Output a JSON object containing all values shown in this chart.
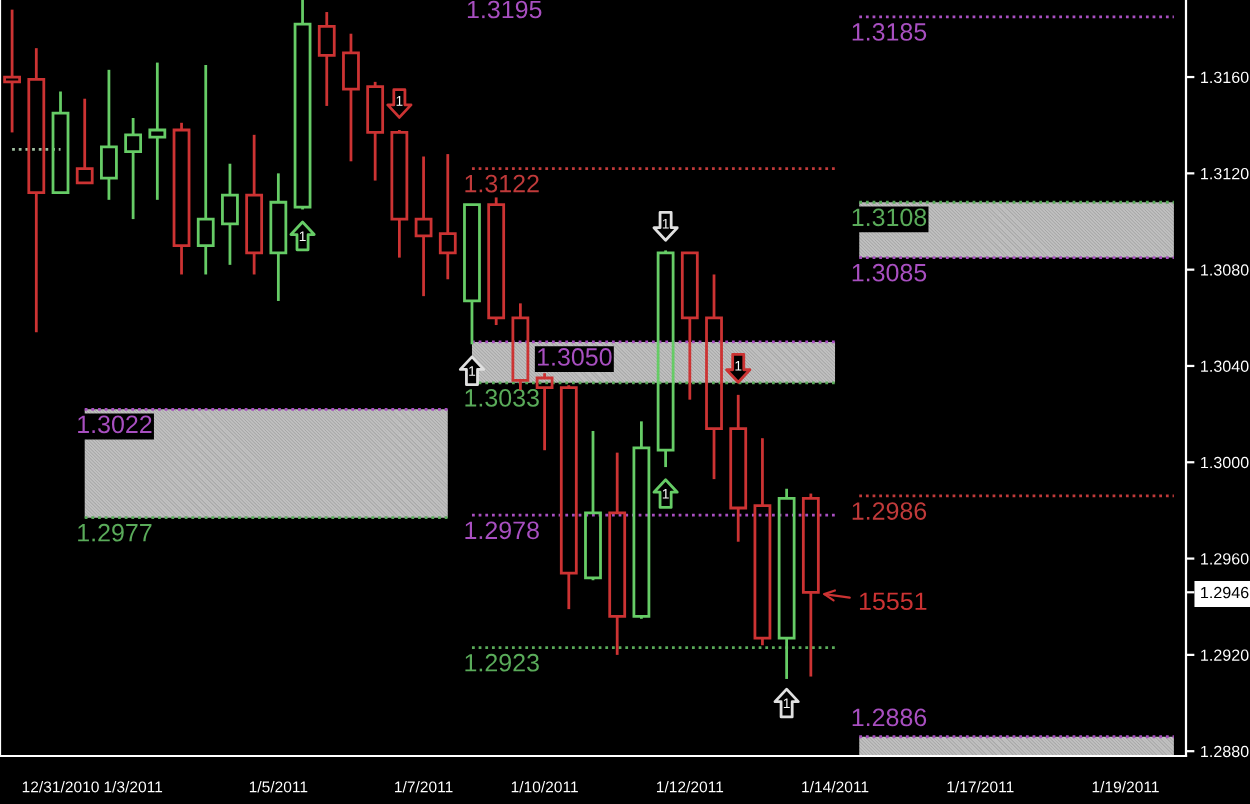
{
  "chart_data": {
    "type": "candlestick",
    "categories": [
      null,
      null,
      "12/31/2010",
      null,
      null,
      "1/3/2011",
      null,
      null,
      null,
      null,
      null,
      "1/5/2011",
      null,
      null,
      null,
      null,
      null,
      "1/7/2011",
      null,
      null,
      null,
      null,
      "1/10/2011",
      null,
      null,
      null,
      null,
      null,
      "1/12/2011",
      null,
      null,
      null,
      null,
      null,
      "1/14/2011",
      null,
      null,
      null,
      null,
      null,
      "1/17/2011",
      null,
      null,
      null,
      null,
      null,
      "1/19/2011",
      null,
      null
    ],
    "ohlc": [
      [
        1.316,
        1.3188,
        1.3137,
        1.3158
      ],
      [
        1.3159,
        1.3172,
        1.3054,
        1.3112
      ],
      [
        1.3112,
        1.3154,
        1.3112,
        1.3145
      ],
      [
        1.3122,
        1.3151,
        1.3116,
        1.3116
      ],
      [
        1.3118,
        1.3163,
        1.3109,
        1.3131
      ],
      [
        1.3129,
        1.3143,
        1.3101,
        1.3136
      ],
      [
        1.3135,
        1.3166,
        1.3109,
        1.3138
      ],
      [
        1.3138,
        1.3141,
        1.3078,
        1.309
      ],
      [
        1.309,
        1.3165,
        1.3078,
        1.3101
      ],
      [
        1.3099,
        1.3124,
        1.3082,
        1.3111
      ],
      [
        1.3111,
        1.3136,
        1.3078,
        1.3087
      ],
      [
        1.3087,
        1.312,
        1.3067,
        1.3108
      ],
      [
        1.3106,
        1.3192,
        1.3105,
        1.3182
      ],
      [
        1.3181,
        1.3187,
        1.3148,
        1.3169
      ],
      [
        1.317,
        1.3178,
        1.3125,
        1.3155
      ],
      [
        1.3156,
        1.3158,
        1.3117,
        1.3137
      ],
      [
        1.3137,
        1.3138,
        1.3085,
        1.3101
      ],
      [
        1.3101,
        1.3127,
        1.3069,
        1.3094
      ],
      [
        1.3095,
        1.3128,
        1.3076,
        1.3087
      ],
      [
        1.3067,
        1.3107,
        1.3049,
        1.3107
      ],
      [
        1.3107,
        1.311,
        1.3057,
        1.306
      ],
      [
        1.306,
        1.3066,
        1.303,
        1.3034
      ],
      [
        1.3035,
        1.3037,
        1.3005,
        1.3031
      ],
      [
        1.3031,
        1.3032,
        1.2939,
        1.2954
      ],
      [
        1.2952,
        1.3013,
        1.2951,
        1.2979
      ],
      [
        1.2979,
        1.3004,
        1.292,
        1.2936
      ],
      [
        1.2936,
        1.3017,
        1.2935,
        1.3006
      ],
      [
        1.3005,
        1.3088,
        1.2998,
        1.3087
      ],
      [
        1.3087,
        1.3087,
        1.3026,
        1.306
      ],
      [
        1.306,
        1.3078,
        1.2993,
        1.3014
      ],
      [
        1.3014,
        1.3028,
        1.2967,
        1.2981
      ],
      [
        1.2982,
        1.301,
        1.2924,
        1.2927
      ],
      [
        1.2927,
        1.2989,
        1.291,
        1.2985
      ],
      [
        1.2985,
        1.2987,
        1.2911,
        1.2946
      ],
      null,
      null,
      null,
      null,
      null,
      null,
      null,
      null,
      null,
      null,
      null,
      null,
      null,
      null,
      null
    ],
    "colors": [
      "#cc3333",
      "#cc3333",
      "#66cc66",
      "#cc3333",
      "#66cc66",
      "#66cc66",
      "#66cc66",
      "#cc3333",
      "#66cc66",
      "#66cc66",
      "#cc3333",
      "#66cc66",
      "#66cc66",
      "#cc3333",
      "#cc3333",
      "#cc3333",
      "#cc3333",
      "#cc3333",
      "#cc3333",
      "#66cc66",
      "#cc3333",
      "#cc3333",
      "#cc3333",
      "#cc3333",
      "#66cc66",
      "#cc3333",
      "#66cc66",
      "#66cc66",
      "#cc3333",
      "#cc3333",
      "#cc3333",
      "#cc3333",
      "#66cc66",
      "#cc3333",
      null,
      null,
      null,
      null,
      null,
      null,
      null,
      null,
      null,
      null,
      null,
      null,
      null,
      null,
      null
    ],
    "series": [
      {
        "type": "line",
        "name": "1.3185",
        "color": "#a84fc0",
        "values": [
          null,
          null,
          null,
          null,
          null,
          null,
          null,
          null,
          null,
          null,
          null,
          null,
          null,
          null,
          null,
          null,
          null,
          null,
          null,
          null,
          null,
          null,
          null,
          null,
          null,
          null,
          null,
          null,
          null,
          null,
          null,
          null,
          null,
          null,
          null,
          1.3185,
          1.3185,
          1.3185,
          1.3185,
          1.3185,
          1.3185,
          1.3185,
          1.3185,
          1.3185,
          1.3185,
          1.3185,
          1.3185,
          1.3185,
          1.3185
        ]
      },
      {
        "type": "line",
        "name": "1.3122",
        "color": "#c03a3a",
        "values": [
          null,
          null,
          null,
          null,
          null,
          null,
          null,
          null,
          null,
          null,
          null,
          null,
          null,
          null,
          null,
          null,
          null,
          null,
          null,
          1.3122,
          1.3122,
          1.3122,
          1.3122,
          1.3122,
          1.3122,
          1.3122,
          1.3122,
          1.3122,
          1.3122,
          1.3122,
          1.3122,
          1.3122,
          1.3122,
          1.3122,
          1.3122,
          null,
          null,
          null,
          null,
          null,
          null,
          null,
          null,
          null,
          null,
          null,
          null,
          null,
          null
        ]
      },
      {
        "type": "line",
        "name": "1.3108",
        "color": "#5aab5a",
        "values": [
          null,
          null,
          null,
          null,
          null,
          null,
          null,
          null,
          null,
          null,
          null,
          null,
          null,
          null,
          null,
          null,
          null,
          null,
          null,
          null,
          null,
          null,
          null,
          null,
          null,
          null,
          null,
          null,
          null,
          null,
          null,
          null,
          null,
          null,
          null,
          1.3108,
          1.3108,
          1.3108,
          1.3108,
          1.3108,
          1.3108,
          1.3108,
          1.3108,
          1.3108,
          1.3108,
          1.3108,
          1.3108,
          1.3108,
          1.3108
        ],
        "lower": [
          null,
          null,
          null,
          null,
          null,
          null,
          null,
          null,
          null,
          null,
          null,
          null,
          null,
          null,
          null,
          null,
          null,
          null,
          null,
          null,
          null,
          null,
          null,
          null,
          null,
          null,
          null,
          null,
          null,
          null,
          null,
          null,
          null,
          null,
          null,
          1.3085,
          1.3085,
          1.3085,
          1.3085,
          1.3085,
          1.3085,
          1.3085,
          1.3085,
          1.3085,
          1.3085,
          1.3085,
          1.3085,
          1.3085,
          1.3085
        ],
        "upper": [
          null,
          null,
          null,
          null,
          null,
          null,
          null,
          null,
          null,
          null,
          null,
          null,
          null,
          null,
          null,
          null,
          null,
          null,
          null,
          null,
          null,
          null,
          null,
          null,
          null,
          null,
          null,
          null,
          null,
          null,
          null,
          null,
          null,
          null,
          null,
          1.3108,
          1.3108,
          1.3108,
          1.3108,
          1.3108,
          1.3108,
          1.3108,
          1.3108,
          1.3108,
          1.3108,
          1.3108,
          1.3108,
          1.3108,
          1.3108
        ]
      },
      {
        "type": "line",
        "name": "1.3085",
        "color": "#a84fc0",
        "values": [
          null,
          null,
          null,
          null,
          null,
          null,
          null,
          null,
          null,
          null,
          null,
          null,
          null,
          null,
          null,
          null,
          null,
          null,
          null,
          null,
          null,
          null,
          null,
          null,
          null,
          null,
          null,
          null,
          null,
          null,
          null,
          null,
          null,
          null,
          null,
          1.3085,
          1.3085,
          1.3085,
          1.3085,
          1.3085,
          1.3085,
          1.3085,
          1.3085,
          1.3085,
          1.3085,
          1.3085,
          1.3085,
          1.3085,
          1.3085
        ]
      },
      {
        "type": "line",
        "name": "1.3050",
        "color": "#a84fc0",
        "values": [
          null,
          null,
          null,
          null,
          null,
          null,
          null,
          null,
          null,
          null,
          null,
          null,
          null,
          null,
          null,
          null,
          null,
          null,
          null,
          1.305,
          1.305,
          1.305,
          1.305,
          1.305,
          1.305,
          1.305,
          1.305,
          1.305,
          1.305,
          1.305,
          1.305,
          1.305,
          1.305,
          1.305,
          1.305,
          null,
          null,
          null,
          null,
          null,
          null,
          null,
          null,
          null,
          null,
          null,
          null,
          null,
          null
        ],
        "lower": [
          null,
          null,
          null,
          null,
          null,
          null,
          null,
          null,
          null,
          null,
          null,
          null,
          null,
          null,
          null,
          null,
          null,
          null,
          null,
          1.3033,
          1.3033,
          1.3033,
          1.3033,
          1.3033,
          1.3033,
          1.3033,
          1.3033,
          1.3033,
          1.3033,
          1.3033,
          1.3033,
          1.3033,
          1.3033,
          1.3033,
          1.3033,
          null,
          null,
          null,
          null,
          null,
          null,
          null,
          null,
          null,
          null,
          null,
          null,
          null,
          null
        ],
        "upper": [
          null,
          null,
          null,
          null,
          null,
          null,
          null,
          null,
          null,
          null,
          null,
          null,
          null,
          null,
          null,
          null,
          null,
          null,
          null,
          1.305,
          1.305,
          1.305,
          1.305,
          1.305,
          1.305,
          1.305,
          1.305,
          1.305,
          1.305,
          1.305,
          1.305,
          1.305,
          1.305,
          1.305,
          1.305,
          null,
          null,
          null,
          null,
          null,
          null,
          null,
          null,
          null,
          null,
          null,
          null,
          null,
          null
        ]
      },
      {
        "type": "line",
        "name": "1.3033",
        "color": "#5aab5a",
        "values": [
          null,
          null,
          null,
          null,
          null,
          null,
          null,
          null,
          null,
          null,
          null,
          null,
          null,
          null,
          null,
          null,
          null,
          null,
          null,
          1.3033,
          1.3033,
          1.3033,
          1.3033,
          1.3033,
          1.3033,
          1.3033,
          1.3033,
          1.3033,
          1.3033,
          1.3033,
          1.3033,
          1.3033,
          1.3033,
          1.3033,
          1.3033,
          null,
          null,
          null,
          null,
          null,
          null,
          null,
          null,
          null,
          null,
          null,
          null,
          null,
          null
        ]
      },
      {
        "type": "line",
        "name": "1.3022",
        "color": "#a84fc0",
        "values": [
          null,
          null,
          null,
          1.3022,
          1.3022,
          1.3022,
          1.3022,
          1.3022,
          1.3022,
          1.3022,
          1.3022,
          1.3022,
          1.3022,
          1.3022,
          1.3022,
          1.3022,
          1.3022,
          1.3022,
          1.3022,
          null,
          null,
          null,
          null,
          null,
          null,
          null,
          null,
          null,
          null,
          null,
          null,
          null,
          null,
          null,
          null,
          null,
          null,
          null,
          null,
          null,
          null,
          null,
          null,
          null,
          null,
          null,
          null,
          null,
          null
        ],
        "lower": [
          null,
          null,
          null,
          1.2977,
          1.2977,
          1.2977,
          1.2977,
          1.2977,
          1.2977,
          1.2977,
          1.2977,
          1.2977,
          1.2977,
          1.2977,
          1.2977,
          1.2977,
          1.2977,
          1.2977,
          1.2977,
          null,
          null,
          null,
          null,
          null,
          null,
          null,
          null,
          null,
          null,
          null,
          null,
          null,
          null,
          null,
          null,
          null,
          null,
          null,
          null,
          null,
          null,
          null,
          null,
          null,
          null,
          null,
          null,
          null,
          null
        ],
        "upper": [
          null,
          null,
          null,
          1.3022,
          1.3022,
          1.3022,
          1.3022,
          1.3022,
          1.3022,
          1.3022,
          1.3022,
          1.3022,
          1.3022,
          1.3022,
          1.3022,
          1.3022,
          1.3022,
          1.3022,
          1.3022,
          null,
          null,
          null,
          null,
          null,
          null,
          null,
          null,
          null,
          null,
          null,
          null,
          null,
          null,
          null,
          null,
          null,
          null,
          null,
          null,
          null,
          null,
          null,
          null,
          null,
          null,
          null,
          null,
          null,
          null
        ]
      },
      {
        "type": "line",
        "name": "1.2977",
        "color": "#5aab5a",
        "values": [
          null,
          null,
          null,
          1.2977,
          1.2977,
          1.2977,
          1.2977,
          1.2977,
          1.2977,
          1.2977,
          1.2977,
          1.2977,
          1.2977,
          1.2977,
          1.2977,
          1.2977,
          1.2977,
          1.2977,
          1.2977,
          null,
          null,
          null,
          null,
          null,
          null,
          null,
          null,
          null,
          null,
          null,
          null,
          null,
          null,
          null,
          null,
          null,
          null,
          null,
          null,
          null,
          null,
          null,
          null,
          null,
          null,
          null,
          null,
          null,
          null
        ]
      },
      {
        "type": "line",
        "name": "1.2978",
        "color": "#a84fc0",
        "values": [
          null,
          null,
          null,
          null,
          null,
          null,
          null,
          null,
          null,
          null,
          null,
          null,
          null,
          null,
          null,
          null,
          null,
          null,
          null,
          1.2978,
          1.2978,
          1.2978,
          1.2978,
          1.2978,
          1.2978,
          1.2978,
          1.2978,
          1.2978,
          1.2978,
          1.2978,
          1.2978,
          1.2978,
          1.2978,
          1.2978,
          1.2978,
          null,
          null,
          null,
          null,
          null,
          null,
          null,
          null,
          null,
          null,
          null,
          null,
          null,
          null
        ]
      },
      {
        "type": "line",
        "name": "1.2986",
        "color": "#c03a3a",
        "values": [
          null,
          null,
          null,
          null,
          null,
          null,
          null,
          null,
          null,
          null,
          null,
          null,
          null,
          null,
          null,
          null,
          null,
          null,
          null,
          null,
          null,
          null,
          null,
          null,
          null,
          null,
          null,
          null,
          null,
          null,
          null,
          null,
          null,
          null,
          null,
          1.2986,
          1.2986,
          1.2986,
          1.2986,
          1.2986,
          1.2986,
          1.2986,
          1.2986,
          1.2986,
          1.2986,
          1.2986,
          1.2986,
          1.2986,
          1.2986
        ]
      },
      {
        "type": "line",
        "name": "1.2923",
        "color": "#5aab5a",
        "values": [
          null,
          null,
          null,
          null,
          null,
          null,
          null,
          null,
          null,
          null,
          null,
          null,
          null,
          null,
          null,
          null,
          null,
          null,
          null,
          1.2923,
          1.2923,
          1.2923,
          1.2923,
          1.2923,
          1.2923,
          1.2923,
          1.2923,
          1.2923,
          1.2923,
          1.2923,
          1.2923,
          1.2923,
          1.2923,
          1.2923,
          1.2923,
          null,
          null,
          null,
          null,
          null,
          null,
          null,
          null,
          null,
          null,
          null,
          null,
          null,
          null
        ]
      },
      {
        "type": "area",
        "name": "1.2886",
        "color": "#a84fc0",
        "values": [
          null,
          null,
          null,
          null,
          null,
          null,
          null,
          null,
          null,
          null,
          null,
          null,
          null,
          null,
          null,
          null,
          null,
          null,
          null,
          null,
          null,
          null,
          null,
          null,
          null,
          null,
          null,
          null,
          null,
          null,
          null,
          null,
          null,
          null,
          null,
          1.2886,
          1.2886,
          1.2886,
          1.2886,
          1.2886,
          1.2886,
          1.2886,
          1.2886,
          1.2886,
          1.2886,
          1.2886,
          1.2886,
          1.2886,
          1.2886
        ]
      },
      {
        "type": "line",
        "color": "#9fbf9f",
        "values": [
          1.313,
          1.313,
          1.313,
          null,
          null,
          null,
          null,
          null,
          null,
          null,
          null,
          null,
          null,
          null,
          null,
          null,
          null,
          null,
          null,
          null,
          null,
          null,
          null,
          null,
          null,
          null,
          null,
          null,
          null,
          null,
          null,
          null,
          null,
          null,
          null,
          null,
          null,
          null,
          null,
          null,
          null,
          null,
          null,
          null,
          null,
          null,
          null,
          null,
          null
        ]
      },
      {
        "type": "scatter",
        "color": "#66cc66",
        "values": [
          null,
          null,
          null,
          null,
          null,
          null,
          null,
          null,
          null,
          null,
          null,
          null,
          1.3094,
          null,
          null,
          null,
          null,
          null,
          null,
          null,
          null,
          null,
          null,
          null,
          null,
          null,
          null,
          1.2987,
          null,
          null,
          null,
          null,
          null,
          null,
          null,
          null,
          null,
          null,
          null,
          null,
          null,
          null,
          null,
          null,
          null,
          null,
          null,
          null,
          null
        ],
        "value_labels": [
          null,
          null,
          null,
          null,
          null,
          null,
          null,
          null,
          null,
          null,
          null,
          null,
          "1",
          null,
          null,
          null,
          null,
          null,
          null,
          null,
          null,
          null,
          null,
          null,
          null,
          null,
          null,
          "1",
          null,
          null,
          null,
          null,
          null,
          null,
          null,
          null,
          null,
          null,
          null,
          null,
          null,
          null,
          null,
          null,
          null,
          null,
          null,
          null,
          null
        ]
      },
      {
        "type": "scatter",
        "color": "#cc3333",
        "values": [
          null,
          null,
          null,
          null,
          null,
          null,
          null,
          null,
          null,
          null,
          null,
          null,
          null,
          null,
          null,
          null,
          1.3149,
          null,
          null,
          null,
          null,
          null,
          null,
          null,
          null,
          null,
          null,
          null,
          null,
          null,
          1.3039,
          null,
          null,
          null,
          null,
          null,
          null,
          null,
          null,
          null,
          null,
          null,
          null,
          null,
          null,
          null,
          null,
          null,
          null
        ],
        "value_labels": [
          null,
          null,
          null,
          null,
          null,
          null,
          null,
          null,
          null,
          null,
          null,
          null,
          null,
          null,
          null,
          null,
          "1",
          null,
          null,
          null,
          null,
          null,
          null,
          null,
          null,
          null,
          null,
          null,
          null,
          null,
          "1",
          null,
          null,
          null,
          null,
          null,
          null,
          null,
          null,
          null,
          null,
          null,
          null,
          null,
          null,
          null,
          null,
          null,
          null
        ]
      },
      {
        "type": "scatter",
        "color": "#e0e0e0",
        "values": [
          null,
          null,
          null,
          null,
          null,
          null,
          null,
          null,
          null,
          null,
          null,
          null,
          null,
          null,
          null,
          null,
          null,
          null,
          null,
          1.3038,
          null,
          null,
          null,
          null,
          null,
          null,
          null,
          1.3098,
          null,
          null,
          null,
          null,
          1.29,
          null,
          null,
          null,
          null,
          null,
          null,
          null,
          null,
          null,
          null,
          null,
          null,
          null,
          null,
          null,
          null
        ],
        "value_labels": [
          null,
          null,
          null,
          null,
          null,
          null,
          null,
          null,
          null,
          null,
          null,
          null,
          null,
          null,
          null,
          null,
          null,
          null,
          null,
          "1",
          null,
          null,
          null,
          null,
          null,
          null,
          null,
          "1",
          null,
          null,
          null,
          null,
          "1",
          null,
          null,
          null,
          null,
          null,
          null,
          null,
          null,
          null,
          null,
          null,
          null,
          null,
          null,
          null,
          null
        ]
      }
    ],
    "line_style": "dotted",
    "annotations": [
      "15551",
      "1.3195"
    ],
    "ylim": [
      1.2878,
      1.3192
    ],
    "yticks": [
      {
        "value": 1.288,
        "label": "1.2880"
      },
      {
        "value": 1.292,
        "label": "1.2920"
      },
      {
        "value": 1.2946,
        "label": "1.2946"
      },
      {
        "value": 1.296,
        "label": "1.2960"
      },
      {
        "value": 1.3,
        "label": "1.3000"
      },
      {
        "value": 1.304,
        "label": "1.3040"
      },
      {
        "value": 1.308,
        "label": "1.3080"
      },
      {
        "value": 1.312,
        "label": "1.3120"
      },
      {
        "value": 1.316,
        "label": "1.3160"
      }
    ]
  }
}
